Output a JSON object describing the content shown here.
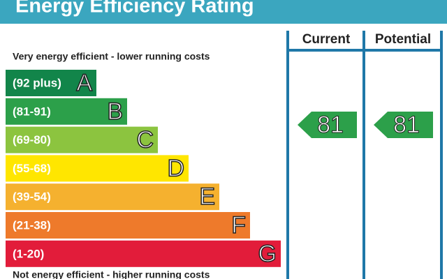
{
  "header": {
    "title": "Energy Efficiency Rating"
  },
  "columns": [
    "Current",
    "Potential"
  ],
  "top_note": "Very energy efficient - lower running costs",
  "bottom_note": "Not energy efficient - higher running costs",
  "bands": [
    {
      "range": "(92 plus)",
      "letter": "A",
      "color": "#12854a"
    },
    {
      "range": "(81-91)",
      "letter": "B",
      "color": "#2ca04a"
    },
    {
      "range": "(69-80)",
      "letter": "C",
      "color": "#8cc43f"
    },
    {
      "range": "(55-68)",
      "letter": "D",
      "color": "#ffe600"
    },
    {
      "range": "(39-54)",
      "letter": "E",
      "color": "#f5b12f"
    },
    {
      "range": "(21-38)",
      "letter": "F",
      "color": "#ee7a2b"
    },
    {
      "range": "(1-20)",
      "letter": "G",
      "color": "#e21c3a"
    }
  ],
  "ratings": [
    {
      "value": 81,
      "color": "#2ca04a"
    },
    {
      "value": 81,
      "color": "#2ca04a"
    }
  ]
}
